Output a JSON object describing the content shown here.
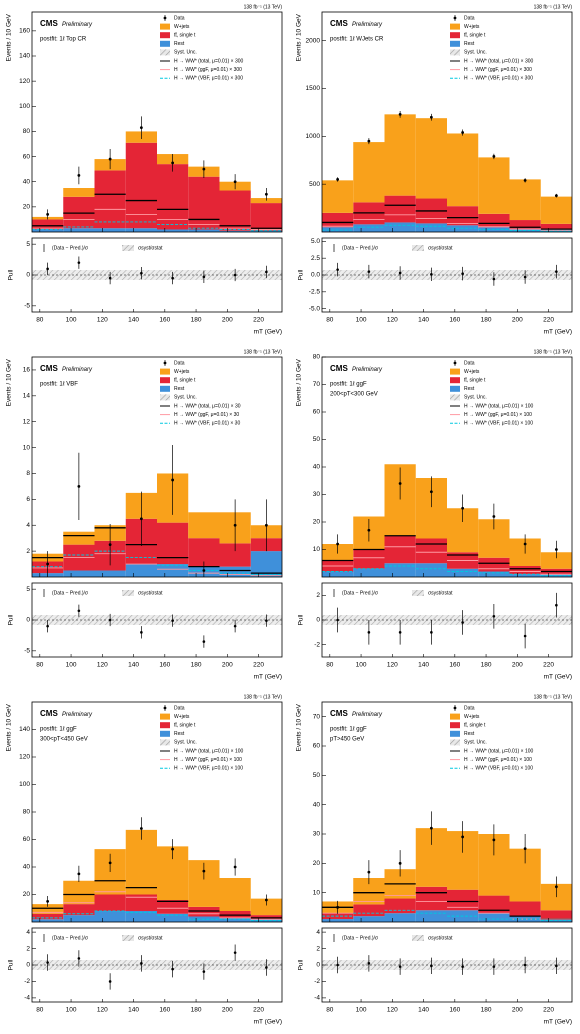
{
  "chart_data": [
    {
      "type": "stacked_histogram",
      "lumi": "138 fb⁻¹ (13 TeV)",
      "cms": "CMS",
      "prelim": "Preliminary",
      "region": [
        "postfit: 1ℓ Top CR"
      ],
      "ylabel": "Events / 10 GeV",
      "xlabel": "mT (GeV)",
      "bins": [
        75,
        95,
        115,
        135,
        155,
        175,
        195,
        215,
        235
      ],
      "xlim": [
        75,
        235
      ],
      "xticks": [
        80,
        100,
        120,
        140,
        160,
        180,
        200,
        220
      ],
      "ylim": [
        0,
        175
      ],
      "yticks": [
        20,
        40,
        60,
        80,
        100,
        120,
        140,
        160
      ],
      "series": [
        {
          "name": "W+jets",
          "color": "#f9a11b",
          "values": [
            2,
            7,
            9,
            9,
            8,
            8,
            7,
            4
          ]
        },
        {
          "name": "tt̄, single t",
          "color": "#e42536",
          "values": [
            8,
            25,
            46,
            68,
            52,
            42,
            32,
            22
          ]
        },
        {
          "name": "Rest",
          "color": "#3f90da",
          "values": [
            2,
            3,
            3,
            3,
            2,
            2,
            1,
            1
          ]
        }
      ],
      "unc_name": "Syst. Unc.",
      "signals": [
        {
          "name": "H → WW* (total, μ=0.01) × 300",
          "color": "#000000",
          "values": [
            5,
            15,
            30,
            25,
            18,
            10,
            5,
            3
          ]
        },
        {
          "name": "H → WW* (ggF, μ=0.01) × 300",
          "color": "#ff9aa2",
          "values": [
            3,
            10,
            18,
            14,
            10,
            6,
            3,
            2
          ]
        },
        {
          "name": "H → WW* (VBF, μ=0.01) × 300",
          "color": "#00c8e0",
          "values": [
            2,
            4,
            8,
            8,
            6,
            3,
            2,
            1
          ]
        }
      ],
      "data": {
        "name": "Data",
        "values": [
          14,
          45,
          58,
          83,
          55,
          50,
          40,
          30
        ],
        "errors": [
          4,
          7,
          8,
          9,
          7,
          7,
          6,
          5
        ]
      },
      "pull": {
        "ylabel": "Pull",
        "ylim": [
          -6,
          6
        ],
        "yticks": [
          -5,
          0,
          5
        ],
        "values": [
          1,
          2,
          -0.5,
          0.3,
          -0.5,
          -0.3,
          0,
          0.5
        ],
        "errors": [
          1,
          1,
          1,
          1,
          1,
          1,
          1,
          1
        ],
        "legend": [
          "(Data − Pred.)/σ",
          "σsyst/σstat"
        ]
      }
    },
    {
      "type": "stacked_histogram",
      "lumi": "138 fb⁻¹ (13 TeV)",
      "cms": "CMS",
      "prelim": "Preliminary",
      "region": [
        "postfit: 1ℓ WJets CR"
      ],
      "ylabel": "Events / 10 GeV",
      "xlabel": "mT (GeV)",
      "bins": [
        75,
        95,
        115,
        135,
        155,
        175,
        195,
        215,
        235
      ],
      "xlim": [
        75,
        235
      ],
      "xticks": [
        80,
        100,
        120,
        140,
        160,
        180,
        200,
        220
      ],
      "ylim": [
        0,
        2300
      ],
      "yticks": [
        500,
        1000,
        1500,
        2000
      ],
      "series": [
        {
          "name": "W+jets",
          "color": "#f9a11b",
          "values": [
            340,
            630,
            850,
            840,
            760,
            590,
            425,
            285
          ]
        },
        {
          "name": "tt̄, single t",
          "color": "#e42536",
          "values": [
            150,
            230,
            280,
            260,
            200,
            140,
            90,
            60
          ]
        },
        {
          "name": "Rest",
          "color": "#3f90da",
          "values": [
            50,
            80,
            100,
            90,
            70,
            50,
            35,
            25
          ]
        }
      ],
      "unc_name": "Syst. Unc.",
      "signals": [
        {
          "name": "H → WW* (total, μ=0.01) × 300",
          "color": "#000000",
          "values": [
            100,
            200,
            280,
            220,
            150,
            90,
            50,
            30
          ]
        },
        {
          "name": "H → WW* (ggF, μ=0.01) × 300",
          "color": "#ff9aa2",
          "values": [
            60,
            130,
            180,
            140,
            90,
            55,
            30,
            18
          ]
        },
        {
          "name": "H → WW* (VBF, μ=0.01) × 300",
          "color": "#00c8e0",
          "values": [
            20,
            50,
            70,
            60,
            40,
            25,
            15,
            8
          ]
        }
      ],
      "data": {
        "name": "Data",
        "values": [
          550,
          950,
          1230,
          1200,
          1040,
          790,
          540,
          380
        ],
        "errors": [
          23,
          31,
          35,
          35,
          32,
          28,
          23,
          19
        ]
      },
      "pull": {
        "ylabel": "Pull",
        "ylim": [
          -5.5,
          5.5
        ],
        "yticks": [
          {
            "value": -5,
            "label": "-5.0"
          },
          {
            "value": -2.5,
            "label": "-2.5"
          },
          {
            "value": 0,
            "label": "0.0"
          },
          {
            "value": 2.5,
            "label": "2.5"
          },
          {
            "value": 5,
            "label": "5.0"
          }
        ],
        "values": [
          0.8,
          0.5,
          0.3,
          0.1,
          0.2,
          -0.6,
          -0.3,
          0.5
        ],
        "errors": [
          1,
          1,
          1,
          1,
          1,
          1,
          1,
          1
        ],
        "legend": [
          "(Data − Pred.)/σ",
          "σsyst/σstat"
        ]
      }
    },
    {
      "type": "stacked_histogram",
      "lumi": "138 fb⁻¹ (13 TeV)",
      "cms": "CMS",
      "prelim": "Preliminary",
      "region": [
        "postfit: 1ℓ VBF"
      ],
      "ylabel": "Events / 10 GeV",
      "xlabel": "mT (GeV)",
      "bins": [
        75,
        95,
        115,
        135,
        155,
        175,
        195,
        215,
        235
      ],
      "xlim": [
        75,
        235
      ],
      "xticks": [
        80,
        100,
        120,
        140,
        160,
        180,
        200,
        220
      ],
      "ylim": [
        0,
        17
      ],
      "yticks": [
        2,
        4,
        6,
        8,
        10,
        12,
        14,
        16
      ],
      "series": [
        {
          "name": "W+jets",
          "color": "#f9a11b",
          "values": [
            0.6,
            1.0,
            1.2,
            2.0,
            3.8,
            2.0,
            2.4,
            1.0
          ]
        },
        {
          "name": "tt̄, single t",
          "color": "#e42536",
          "values": [
            0.9,
            2,
            2.3,
            3.5,
            3.2,
            2.2,
            1.8,
            1.0
          ]
        },
        {
          "name": "Rest",
          "color": "#3f90da",
          "values": [
            0.3,
            0.5,
            0.5,
            1.0,
            1.0,
            0.8,
            0.8,
            2.0
          ]
        }
      ],
      "unc_name": "Syst. Unc.",
      "signals": [
        {
          "name": "H → WW* (total, μ=0.01) × 30",
          "color": "#000000",
          "values": [
            1.5,
            3.2,
            3.8,
            2.5,
            1.5,
            0.8,
            0.5,
            0.3
          ]
        },
        {
          "name": "H → WW* (ggF, μ=0.01) × 30",
          "color": "#ff9aa2",
          "values": [
            0.7,
            1.5,
            1.8,
            1.0,
            0.6,
            0.3,
            0.2,
            0.1
          ]
        },
        {
          "name": "H → WW* (VBF, μ=0.01) × 30",
          "color": "#00c8e0",
          "values": [
            0.8,
            1.7,
            2.0,
            1.5,
            0.9,
            0.5,
            0.3,
            0.2
          ]
        }
      ],
      "data": {
        "name": "Data",
        "values": [
          1,
          7,
          2.5,
          4.5,
          7.5,
          0.5,
          4,
          4
        ],
        "errors": [
          1,
          2.6,
          1.6,
          2.1,
          2.7,
          0.7,
          2,
          2
        ]
      },
      "pull": {
        "ylabel": "Pull",
        "ylim": [
          -6,
          6
        ],
        "yticks": [
          -5,
          0,
          5
        ],
        "values": [
          -1,
          1.5,
          0,
          -2,
          -0.1,
          -3.5,
          -1,
          -0.1
        ],
        "errors": [
          1,
          1,
          1,
          1,
          1,
          1,
          1,
          1
        ],
        "legend": [
          "(Data − Pred.)/σ",
          "σsyst/σstat"
        ]
      }
    },
    {
      "type": "stacked_histogram",
      "lumi": "138 fb⁻¹ (13 TeV)",
      "cms": "CMS",
      "prelim": "Preliminary",
      "region": [
        "postfit: 1ℓ ggF",
        "200<pT<300 GeV"
      ],
      "ylabel": "Events / 10 GeV",
      "xlabel": "mT (GeV)",
      "bins": [
        75,
        95,
        115,
        135,
        155,
        175,
        195,
        215,
        235
      ],
      "xlim": [
        75,
        235
      ],
      "xticks": [
        80,
        100,
        120,
        140,
        160,
        180,
        200,
        220
      ],
      "ylim": [
        0,
        80
      ],
      "yticks": [
        10,
        20,
        30,
        40,
        50,
        60,
        70,
        80
      ],
      "series": [
        {
          "name": "W+jets",
          "color": "#f9a11b",
          "values": [
            6,
            12,
            26,
            22,
            16,
            14,
            10,
            6
          ]
        },
        {
          "name": "tt̄, single t",
          "color": "#e42536",
          "values": [
            4,
            7,
            10,
            9,
            6,
            5,
            3,
            2
          ]
        },
        {
          "name": "Rest",
          "color": "#3f90da",
          "values": [
            2,
            3,
            5,
            5,
            3,
            2,
            1,
            1
          ]
        }
      ],
      "unc_name": "Syst. Unc.",
      "signals": [
        {
          "name": "H → WW* (total, μ=0.01) × 100",
          "color": "#000000",
          "values": [
            6,
            10,
            15,
            12,
            8,
            5,
            3,
            2
          ]
        },
        {
          "name": "H → WW* (ggF, μ=0.01) × 100",
          "color": "#ff9aa2",
          "values": [
            4,
            7,
            11,
            9,
            6,
            3,
            2,
            1
          ]
        },
        {
          "name": "H → WW* (VBF, μ=0.01) × 100",
          "color": "#00c8e0",
          "values": [
            2,
            3,
            4,
            3,
            2,
            1.5,
            1,
            0.5
          ]
        }
      ],
      "data": {
        "name": "Data",
        "values": [
          12,
          17,
          34,
          31,
          25,
          22,
          12,
          10
        ],
        "errors": [
          3.5,
          4.1,
          5.8,
          5.6,
          5,
          4.7,
          3.5,
          3.2
        ]
      },
      "pull": {
        "ylabel": "Pull",
        "ylim": [
          -3,
          3
        ],
        "yticks": [
          -2,
          0,
          2
        ],
        "values": [
          0,
          -1,
          -1,
          -1,
          -0.2,
          0.3,
          -1.3,
          1.2
        ],
        "errors": [
          1,
          1,
          1,
          1,
          1,
          1,
          1,
          1
        ],
        "legend": [
          "(Data − Pred.)/σ",
          "σsyst/σstat"
        ]
      }
    },
    {
      "type": "stacked_histogram",
      "lumi": "138 fb⁻¹ (13 TeV)",
      "cms": "CMS",
      "prelim": "Preliminary",
      "region": [
        "postfit: 1ℓ ggF",
        "300<pT<450 GeV"
      ],
      "ylabel": "Events / 10 GeV",
      "xlabel": "mT (GeV)",
      "bins": [
        75,
        95,
        115,
        135,
        155,
        175,
        195,
        215,
        235
      ],
      "xlim": [
        75,
        235
      ],
      "xticks": [
        80,
        100,
        120,
        140,
        160,
        180,
        200,
        220
      ],
      "ylim": [
        0,
        160
      ],
      "yticks": [
        20,
        40,
        60,
        80,
        100,
        120,
        140
      ],
      "series": [
        {
          "name": "W+jets",
          "color": "#f9a11b",
          "values": [
            7,
            17,
            33,
            47,
            39,
            34,
            24,
            12
          ]
        },
        {
          "name": "tt̄, single t",
          "color": "#e42536",
          "values": [
            4,
            8,
            12,
            12,
            10,
            7,
            5,
            3
          ]
        },
        {
          "name": "Rest",
          "color": "#3f90da",
          "values": [
            2,
            5,
            8,
            8,
            6,
            4,
            3,
            2
          ]
        }
      ],
      "unc_name": "Syst. Unc.",
      "signals": [
        {
          "name": "H → WW* (total, μ=0.01) × 100",
          "color": "#000000",
          "values": [
            10,
            20,
            30,
            25,
            15,
            8,
            5,
            3
          ]
        },
        {
          "name": "H → WW* (ggF, μ=0.01) × 100",
          "color": "#ff9aa2",
          "values": [
            7,
            14,
            22,
            18,
            10,
            6,
            3,
            2
          ]
        },
        {
          "name": "H → WW* (VBF, μ=0.01) × 100",
          "color": "#00c8e0",
          "values": [
            3,
            6,
            8,
            7,
            5,
            2,
            2,
            1
          ]
        }
      ],
      "data": {
        "name": "Data",
        "values": [
          15,
          35,
          43,
          68,
          53,
          37,
          40,
          16
        ],
        "errors": [
          3.9,
          5.9,
          6.6,
          8.2,
          7.3,
          6.1,
          6.3,
          4
        ]
      },
      "pull": {
        "ylabel": "Pull",
        "ylim": [
          -4.5,
          4.5
        ],
        "yticks": [
          -4,
          -2,
          0,
          2,
          4
        ],
        "values": [
          0.3,
          0.8,
          -2,
          0.2,
          -0.5,
          -0.8,
          1.5,
          -0.3
        ],
        "errors": [
          1,
          1,
          1,
          1,
          1,
          1,
          1,
          1
        ],
        "legend": [
          "(Data − Pred.)/σ",
          "σsyst/σstat"
        ]
      }
    },
    {
      "type": "stacked_histogram",
      "lumi": "138 fb⁻¹ (13 TeV)",
      "cms": "CMS",
      "prelim": "Preliminary",
      "region": [
        "postfit: 1ℓ ggF",
        "pT>450 GeV"
      ],
      "ylabel": "Events / 10 GeV",
      "xlabel": "mT (GeV)",
      "bins": [
        75,
        95,
        115,
        135,
        155,
        175,
        195,
        215,
        235
      ],
      "xlim": [
        75,
        235
      ],
      "xticks": [
        80,
        100,
        120,
        140,
        160,
        180,
        200,
        220
      ],
      "ylim": [
        0,
        75
      ],
      "yticks": [
        10,
        20,
        30,
        40,
        50,
        60,
        70
      ],
      "series": [
        {
          "name": "W+jets",
          "color": "#f9a11b",
          "values": [
            4,
            9,
            10,
            20,
            20,
            21,
            18,
            9
          ]
        },
        {
          "name": "tt̄, single t",
          "color": "#e42536",
          "values": [
            2,
            4,
            5,
            8,
            7,
            6,
            5,
            3
          ]
        },
        {
          "name": "Rest",
          "color": "#3f90da",
          "values": [
            1,
            2,
            3,
            4,
            4,
            3,
            2,
            1
          ]
        }
      ],
      "unc_name": "Syst. Unc.",
      "signals": [
        {
          "name": "H → WW* (total, μ=0.01) × 100",
          "color": "#000000",
          "values": [
            5,
            10,
            13,
            10,
            7,
            4,
            2,
            1
          ]
        },
        {
          "name": "H → WW* (ggF, μ=0.01) × 100",
          "color": "#ff9aa2",
          "values": [
            3,
            7,
            9,
            7,
            5,
            3,
            1,
            1
          ]
        },
        {
          "name": "H → WW* (VBF, μ=0.01) × 100",
          "color": "#00c8e0",
          "values": [
            2,
            3,
            4,
            3,
            2,
            1,
            1,
            0.5
          ]
        }
      ],
      "data": {
        "name": "Data",
        "values": [
          5,
          17,
          20,
          32,
          29,
          28,
          25,
          12
        ],
        "errors": [
          2.2,
          4.1,
          4.5,
          5.7,
          5.4,
          5.3,
          5,
          3.5
        ]
      },
      "pull": {
        "ylabel": "Pull",
        "ylim": [
          -4.5,
          4.5
        ],
        "yticks": [
          -4,
          -2,
          0,
          2,
          4
        ],
        "values": [
          0,
          0.2,
          -0.2,
          -0.1,
          -0.2,
          -0.2,
          0,
          -0.1
        ],
        "errors": [
          1,
          1,
          1,
          1,
          1,
          1,
          1,
          1
        ],
        "legend": [
          "(Data − Pred.)/σ",
          "σsyst/σstat"
        ]
      }
    }
  ]
}
